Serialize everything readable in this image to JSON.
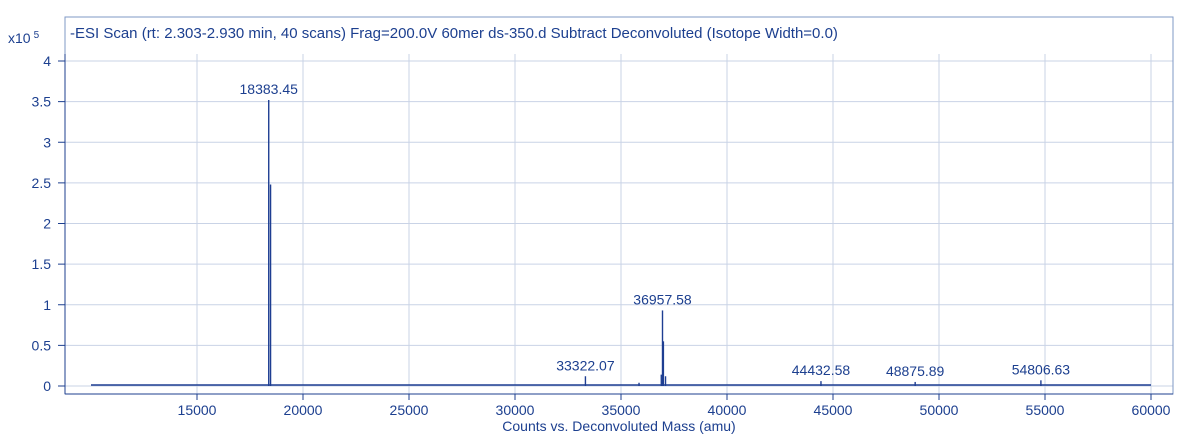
{
  "chart_data": {
    "type": "line",
    "title": "-ESI Scan (rt: 2.303-2.930 min, 40 scans) Frag=200.0V 60mer ds-350.d  Subtract Deconvoluted (Isotope Width=0.0)",
    "y_multiplier_label": "x10",
    "y_multiplier_exponent": "5",
    "xlabel": "Counts vs. Deconvoluted Mass (amu)",
    "ylabel": "",
    "xlim": [
      10000,
      60000
    ],
    "ylim": [
      0,
      4.1
    ],
    "x_ticks": [
      15000,
      20000,
      25000,
      30000,
      35000,
      40000,
      45000,
      50000,
      55000,
      60000
    ],
    "x_tick_labels": [
      "15000",
      "20000",
      "25000",
      "30000",
      "35000",
      "40000",
      "45000",
      "50000",
      "55000",
      "60000"
    ],
    "y_ticks": [
      0,
      0.5,
      1,
      1.5,
      2,
      2.5,
      3,
      3.5,
      4
    ],
    "y_tick_labels": [
      "0",
      "0.5",
      "1",
      "1.5",
      "2",
      "2.5",
      "3",
      "3.5",
      "4"
    ],
    "grid": true,
    "series": [
      {
        "values": [
          {
            "x": 18383.45,
            "y": 3.52
          },
          {
            "x": 18470,
            "y": 2.48
          },
          {
            "x": 33322.07,
            "y": 0.12
          },
          {
            "x": 35850,
            "y": 0.04
          },
          {
            "x": 36900,
            "y": 0.14
          },
          {
            "x": 36957.58,
            "y": 0.93
          },
          {
            "x": 37000,
            "y": 0.55
          },
          {
            "x": 37100,
            "y": 0.12
          },
          {
            "x": 44432.58,
            "y": 0.06
          },
          {
            "x": 48875.89,
            "y": 0.05
          },
          {
            "x": 54806.63,
            "y": 0.07
          }
        ]
      }
    ],
    "annotations": [
      {
        "label": "18383.45",
        "x": 18383.45,
        "y": 3.52
      },
      {
        "label": "33322.07",
        "x": 33322.07,
        "y": 0.12
      },
      {
        "label": "36957.58",
        "x": 36957.58,
        "y": 0.93
      },
      {
        "label": "44432.58",
        "x": 44432.58,
        "y": 0.06
      },
      {
        "label": "48875.89",
        "x": 48875.89,
        "y": 0.05
      },
      {
        "label": "54806.63",
        "x": 54806.63,
        "y": 0.07
      }
    ]
  }
}
